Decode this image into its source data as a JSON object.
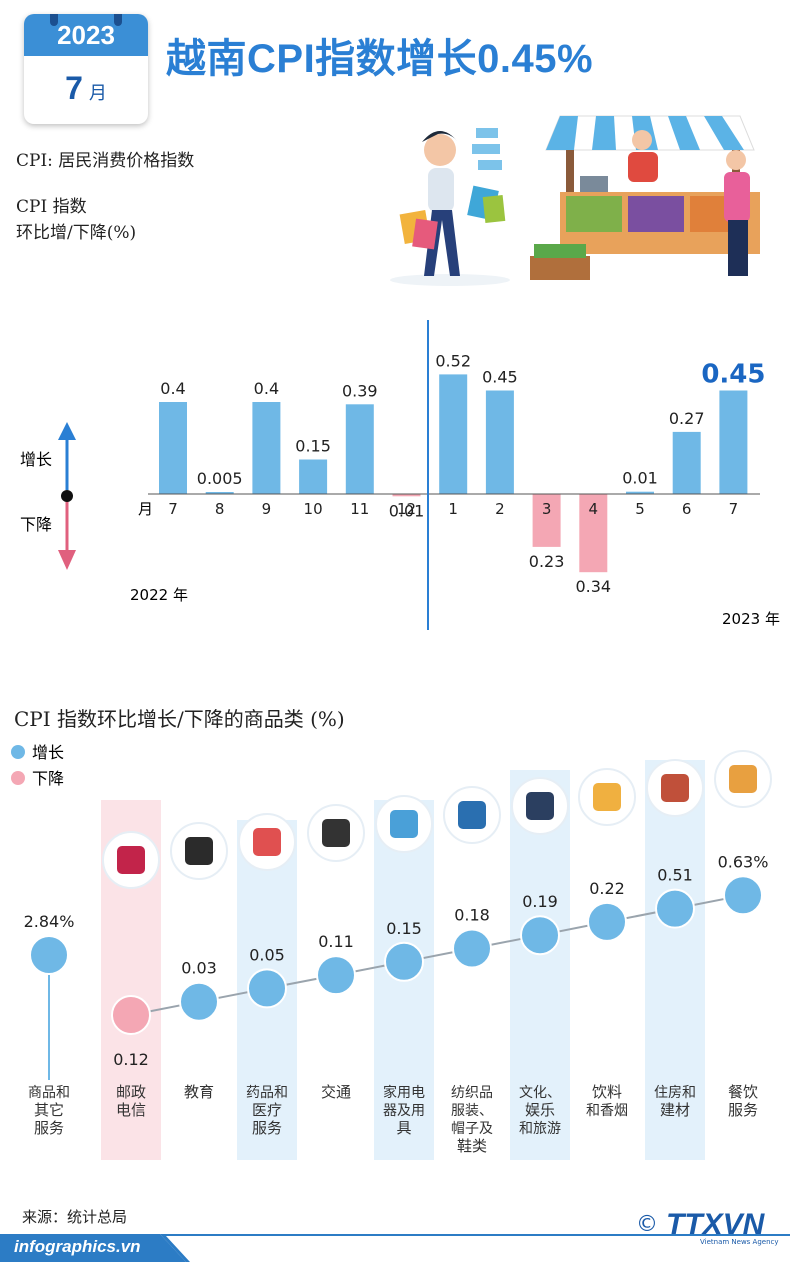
{
  "header": {
    "year": "2023",
    "month": "7",
    "month_unit": "月",
    "title": "越南CPI指数增长0.45%"
  },
  "legend_text": {
    "cpi_def": "CPI: 居民消费价格指数",
    "chart1_title_1": "CPI 指数",
    "chart1_title_2": "环比增/下降(%)",
    "up": "增长",
    "down": "下降",
    "month_axis": "月",
    "year_2022": "2022 年",
    "year_2023": "2023 年",
    "chart2_title": "CPI 指数环比增长/下降的商品类 (%)",
    "legend_up": "增长",
    "legend_down": "下降"
  },
  "colors": {
    "accent": "#2a7fd4",
    "bar_up": "#6fb8e6",
    "bar_down": "#f4a7b4",
    "highlight_label": "#1a66c2",
    "column_blue": "#e3f1fb",
    "column_pink": "#fbe3e7"
  },
  "chart_data": [
    {
      "type": "bar",
      "categories": [
        "7",
        "8",
        "9",
        "10",
        "11",
        "12",
        "1",
        "2",
        "3",
        "4",
        "5",
        "6",
        "7"
      ],
      "values": [
        0.4,
        0.005,
        0.4,
        0.15,
        0.39,
        -0.01,
        0.52,
        0.45,
        -0.23,
        -0.34,
        0.01,
        0.27,
        0.45
      ],
      "labels": [
        "0.4",
        "0.005",
        "0.4",
        "0.15",
        "0.39",
        "0.01",
        "0.52",
        "0.45",
        "0.23",
        "0.34",
        "0.01",
        "0.27",
        "0.45"
      ],
      "title": "CPI 指数 环比增/下降(%)",
      "xlabel": "月",
      "ylabel": "",
      "groups": [
        "2022 年",
        "2023 年"
      ]
    },
    {
      "type": "scatter",
      "title": "CPI 指数环比增长/下降的商品类 (%)",
      "categories": [
        "商品和其它服务",
        "邮政电信",
        "教育",
        "药品和医疗服务",
        "交通",
        "家用电器及用具",
        "纺织品服装、帽子及鞋类",
        "文化、娱乐和旅游",
        "饮料和香烟",
        "住房和建材",
        "餐饮服务"
      ],
      "category_lines": [
        [
          "商品和",
          "其它",
          "服务"
        ],
        [
          "邮政",
          "电信"
        ],
        [
          "教育"
        ],
        [
          "药品和",
          "医疗",
          "服务"
        ],
        [
          "交通"
        ],
        [
          "家用电",
          "器及用",
          "具"
        ],
        [
          "纺织品",
          "服装、",
          "帽子及",
          "鞋类"
        ],
        [
          "文化、",
          "娱乐",
          "和旅游"
        ],
        [
          "饮料",
          "和香烟"
        ],
        [
          "住房和",
          "建材"
        ],
        [
          "餐饮",
          "服务"
        ]
      ],
      "values": [
        2.84,
        -0.12,
        0.03,
        0.05,
        0.11,
        0.15,
        0.18,
        0.19,
        0.22,
        0.51,
        0.63
      ],
      "labels": [
        "2.84%",
        "0.12",
        "0.03",
        "0.05",
        "0.11",
        "0.15",
        "0.18",
        "0.19",
        "0.22",
        "0.51",
        "0.63%"
      ],
      "icons": [
        "",
        "antenna-icon",
        "graduation-cap-icon",
        "pill-icon",
        "traffic-light-icon",
        "washing-machine-icon",
        "clothes-shoes-icon",
        "clapperboard-icon",
        "drinks-icon",
        "bricks-icon",
        "food-plate-icon"
      ]
    }
  ],
  "footer": {
    "source": "来源：统计总局",
    "site": "infographics.vn",
    "logo": "TTXVN",
    "logo_sub": "Vietnam News Agency",
    "copyright": "©"
  }
}
